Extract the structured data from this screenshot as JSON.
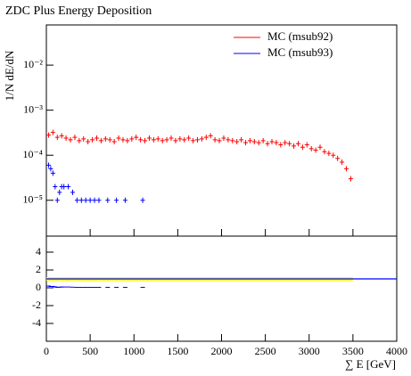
{
  "chart_data": [
    {
      "type": "log-points",
      "title": "ZDC Plus Energy Deposition",
      "y_label": "1/N dE/dN",
      "ylim": [
        1.6e-06,
        0.078
      ],
      "log_y": true,
      "yticks": [
        {
          "value": 1e-05,
          "label": "10⁻⁵"
        },
        {
          "value": 0.0001,
          "label": "10⁻⁴"
        },
        {
          "value": 0.001,
          "label": "10⁻³"
        },
        {
          "value": 0.01,
          "label": "10⁻²"
        }
      ],
      "xlim": [
        0,
        4000
      ],
      "xticks": [
        0,
        500,
        1000,
        1500,
        2000,
        2500,
        3000,
        3500,
        4000
      ],
      "legend": "top-right",
      "series": [
        {
          "name": "MC (msub92)",
          "color": "#ff0000",
          "x": [
            25,
            75,
            125,
            175,
            225,
            275,
            325,
            375,
            425,
            475,
            525,
            575,
            625,
            675,
            725,
            775,
            825,
            875,
            925,
            975,
            1025,
            1075,
            1125,
            1175,
            1225,
            1275,
            1325,
            1375,
            1425,
            1475,
            1525,
            1575,
            1625,
            1675,
            1725,
            1775,
            1825,
            1875,
            1925,
            1975,
            2025,
            2075,
            2125,
            2175,
            2225,
            2275,
            2325,
            2375,
            2425,
            2475,
            2525,
            2575,
            2625,
            2675,
            2725,
            2775,
            2825,
            2875,
            2925,
            2975,
            3025,
            3075,
            3125,
            3175,
            3225,
            3275,
            3325,
            3375,
            3425,
            3475
          ],
          "values": [
            0.00028,
            0.00032,
            0.00025,
            0.00027,
            0.00024,
            0.00022,
            0.00025,
            0.00021,
            0.00023,
            0.0002,
            0.00022,
            0.00024,
            0.00021,
            0.00023,
            0.00022,
            0.0002,
            0.00024,
            0.00022,
            0.00021,
            0.00023,
            0.00025,
            0.00022,
            0.00021,
            0.00024,
            0.00022,
            0.00023,
            0.00021,
            0.00022,
            0.00024,
            0.00021,
            0.00023,
            0.00022,
            0.00024,
            0.00021,
            0.00022,
            0.00023,
            0.00025,
            0.00027,
            0.00022,
            0.00021,
            0.00024,
            0.00022,
            0.00021,
            0.0002,
            0.00022,
            0.00019,
            0.00021,
            0.0002,
            0.00019,
            0.00021,
            0.00018,
            0.0002,
            0.00019,
            0.00017,
            0.00019,
            0.00018,
            0.00016,
            0.00018,
            0.00015,
            0.00017,
            0.00014,
            0.00013,
            0.00015,
            0.00012,
            0.00011,
            0.0001,
            8.5e-05,
            7e-05,
            5e-05,
            3e-05
          ]
        },
        {
          "name": "MC (msub93)",
          "color": "#0000ff",
          "x": [
            25,
            50,
            75,
            100,
            125,
            150,
            175,
            200,
            250,
            300,
            350,
            400,
            450,
            500,
            550,
            600,
            700,
            800,
            900,
            1100
          ],
          "values": [
            6e-05,
            5e-05,
            4e-05,
            2e-05,
            1e-05,
            1.5e-05,
            2e-05,
            2e-05,
            2e-05,
            1.5e-05,
            1e-05,
            1e-05,
            1e-05,
            1e-05,
            1e-05,
            1e-05,
            1e-05,
            1e-05,
            1e-05,
            1e-05
          ]
        }
      ]
    },
    {
      "type": "ratio",
      "x_label": "∑ E [GeV]",
      "ylim": [
        -6,
        5.8
      ],
      "yticks": [
        -4,
        -2,
        0,
        2,
        4
      ],
      "xlim": [
        0,
        4000
      ],
      "xticks": [
        0,
        500,
        1000,
        1500,
        2000,
        2500,
        3000,
        3500,
        4000
      ],
      "band": {
        "x": [
          0,
          3500
        ],
        "lower": [
          0.8,
          0.8
        ],
        "upper": [
          1.2,
          1.2
        ],
        "color": "#ffff00"
      },
      "series": [
        {
          "color": "#0000ff",
          "style": "line",
          "x": [
            0,
            4000
          ],
          "values": [
            1,
            1
          ]
        },
        {
          "color": "#0000ff",
          "style": "points",
          "x": [
            25,
            50,
            75,
            100,
            125,
            150,
            175,
            200,
            250,
            300,
            350,
            400,
            450,
            500,
            550,
            600,
            700,
            800,
            900,
            1100
          ],
          "values": [
            0.2,
            0.15,
            0.15,
            0.1,
            0.05,
            0.07,
            0.09,
            0.09,
            0.09,
            0.07,
            0.05,
            0.05,
            0.05,
            0.05,
            0.05,
            0.05,
            0.05,
            0.05,
            0.05,
            0.05
          ]
        }
      ]
    }
  ]
}
